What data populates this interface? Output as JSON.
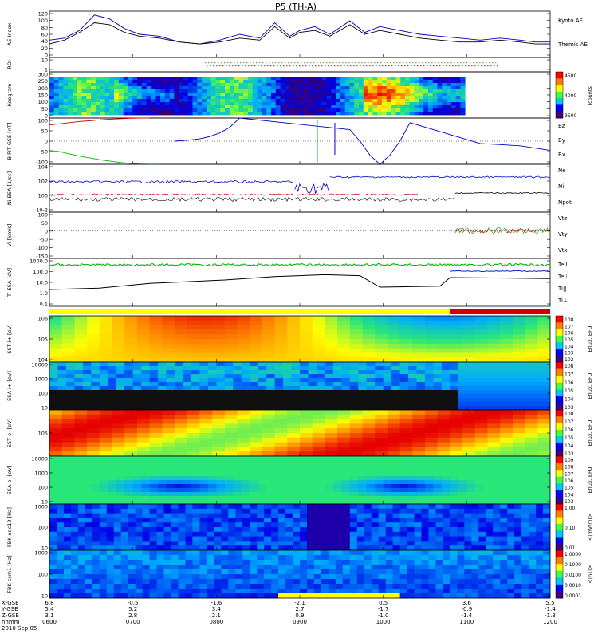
{
  "title": "P5 (TH-A)",
  "colors": {
    "blue": "#0000c8",
    "red": "#d00000",
    "green": "#00b400",
    "black": "#000000"
  },
  "chart_data": [
    {
      "type": "line",
      "panel": "ae",
      "ylabel": "AE Index",
      "ylim": [
        0,
        120
      ],
      "yticks": [
        "120",
        "100",
        "80",
        "60",
        "40",
        "20",
        "0"
      ],
      "series": [
        {
          "name": "Kyoto AE",
          "color": "#0000c8",
          "x": [
            0,
            0.03,
            0.06,
            0.09,
            0.12,
            0.15,
            0.18,
            0.22,
            0.26,
            0.3,
            0.34,
            0.38,
            0.42,
            0.45,
            0.48,
            0.5,
            0.53,
            0.56,
            0.6,
            0.63,
            0.66,
            0.7,
            0.74,
            0.78,
            0.82,
            0.86,
            0.9,
            0.94,
            0.97,
            1.0
          ],
          "y": [
            45,
            50,
            70,
            110,
            100,
            75,
            60,
            55,
            40,
            35,
            45,
            60,
            50,
            90,
            55,
            70,
            80,
            60,
            95,
            65,
            80,
            70,
            60,
            55,
            50,
            45,
            50,
            45,
            40,
            40
          ]
        },
        {
          "name": "Themis AE",
          "color": "#000000",
          "x": [
            0,
            0.03,
            0.06,
            0.09,
            0.12,
            0.15,
            0.18,
            0.22,
            0.26,
            0.3,
            0.34,
            0.38,
            0.42,
            0.45,
            0.48,
            0.5,
            0.53,
            0.56,
            0.6,
            0.63,
            0.66,
            0.7,
            0.74,
            0.78,
            0.82,
            0.86,
            0.9,
            0.94,
            0.97,
            1.0
          ],
          "y": [
            35,
            45,
            65,
            90,
            85,
            65,
            55,
            50,
            40,
            35,
            40,
            50,
            45,
            80,
            50,
            65,
            70,
            55,
            85,
            60,
            70,
            60,
            50,
            45,
            40,
            40,
            45,
            40,
            35,
            35
          ]
        }
      ]
    },
    {
      "type": "line",
      "panel": "roi",
      "ylabel": "ROI",
      "yticks": [
        "10",
        "1"
      ]
    },
    {
      "type": "heatmap",
      "panel": "keogram",
      "ylabel": "Keogram",
      "ylim": [
        0,
        300
      ],
      "yticks": [
        "300",
        "250",
        "200",
        "150",
        "100",
        "50",
        "0"
      ],
      "colorbar": {
        "label": "[counts]",
        "ticks": [
          "4500",
          "4000",
          "3500"
        ]
      }
    },
    {
      "type": "line",
      "panel": "bfit",
      "ylabel": "B FIT GSE [nT]",
      "ylim": [
        -100,
        100
      ],
      "yticks": [
        "100",
        "50",
        "0",
        "-50",
        "-100"
      ],
      "series": [
        {
          "name": "Bz",
          "color": "#d00000",
          "x": [
            0,
            0.02,
            0.04,
            0.06,
            0.08,
            0.1,
            0.12,
            0.14,
            0.16,
            0.18,
            0.2
          ],
          "y": [
            70,
            75,
            80,
            85,
            88,
            92,
            95,
            97,
            99,
            100,
            100
          ]
        },
        {
          "name": "By",
          "color": "#00b400",
          "x": [
            0,
            0.02,
            0.04,
            0.06,
            0.08,
            0.1,
            0.12,
            0.14,
            0.16,
            0.18,
            0.2,
            0.22
          ],
          "y": [
            -40,
            -45,
            -55,
            -65,
            -72,
            -80,
            -86,
            -92,
            -96,
            -99,
            -100,
            -100
          ]
        },
        {
          "name": "Bx",
          "color": "#0000c8",
          "x": [
            0.25,
            0.28,
            0.3,
            0.32,
            0.34,
            0.36,
            0.37,
            0.38,
            0.6,
            0.62,
            0.64,
            0.66,
            0.68,
            0.7,
            0.72,
            0.86,
            0.9,
            0.94,
            0.97,
            1.0
          ],
          "y": [
            0,
            5,
            10,
            20,
            35,
            60,
            80,
            100,
            50,
            0,
            -60,
            -100,
            -60,
            0,
            80,
            -10,
            -15,
            -20,
            -30,
            -40
          ]
        }
      ]
    },
    {
      "type": "line",
      "panel": "ni",
      "ylabel": "Ni ESA [1/cc]",
      "yticks": [
        "10^4",
        "10^2",
        "10^0",
        "10^-2"
      ],
      "series": [
        {
          "name": "Ne",
          "color": "#d00000"
        },
        {
          "name": "Ni",
          "color": "#000000"
        },
        {
          "name": "Npot",
          "color": "#0000c8"
        }
      ]
    },
    {
      "type": "line",
      "panel": "vi",
      "ylabel": "Vi [km/s]",
      "ylim": [
        -150,
        100
      ],
      "yticks": [
        "100",
        "50",
        "0",
        "-50",
        "-100",
        "-150"
      ],
      "series": [
        {
          "name": "Vtz",
          "color": "#d00000"
        },
        {
          "name": "Vty",
          "color": "#00b400"
        },
        {
          "name": "Vtx",
          "color": "#0000c8"
        }
      ]
    },
    {
      "type": "line",
      "panel": "ti",
      "ylabel": "Ti ESA [eV]",
      "yticks": [
        "1000.0",
        "100.0",
        "10.0",
        "1.0",
        "0.1"
      ],
      "series": [
        {
          "name": "Tell",
          "color": "#000000"
        },
        {
          "name": "Te⊥",
          "color": "#d00000"
        },
        {
          "name": "Ti||",
          "color": "#00b400"
        },
        {
          "name": "Ti⊥",
          "color": "#0000c8"
        }
      ]
    },
    {
      "type": "heatmap",
      "panel": "sst-i",
      "ylabel": "SST i+ [eV]",
      "yticks": [
        "10^6",
        "10^5",
        "10^4"
      ],
      "colorbar": {
        "label": "Eflux, EFU",
        "ticks": [
          "10^8",
          "10^7",
          "10^6",
          "10^5",
          "10^4",
          "10^3",
          "10^2"
        ]
      }
    },
    {
      "type": "heatmap",
      "panel": "esa-i",
      "ylabel": "ESA i+ [eV]",
      "yticks": [
        "10000",
        "1000",
        "100",
        "10"
      ],
      "colorbar": {
        "label": "Eflux, EFU",
        "ticks": [
          "10^8",
          "10^7",
          "10^6",
          "10^5",
          "10^4",
          "10^3"
        ]
      }
    },
    {
      "type": "heatmap",
      "panel": "sst-e",
      "ylabel": "SST e- [eV]",
      "yticks": [
        "10^5"
      ],
      "colorbar": {
        "label": "Eflux, EFU",
        "ticks": [
          "10^8",
          "10^7",
          "10^6",
          "10^5",
          "10^4",
          "10^3"
        ]
      }
    },
    {
      "type": "heatmap",
      "panel": "esa-e",
      "ylabel": "ESA e- [eV]",
      "yticks": [
        "10000",
        "1000",
        "100",
        "10"
      ],
      "colorbar": {
        "label": "Eflux, EFU",
        "ticks": [
          "10^9",
          "10^8",
          "10^7",
          "10^6",
          "10^5",
          "10^4",
          "10^3"
        ]
      }
    },
    {
      "type": "heatmap",
      "panel": "fbk-edc",
      "ylabel": "FBK edc12 [Hz]",
      "yticks": [
        "1000",
        "100",
        "10"
      ],
      "colorbar": {
        "label": "<|mV/m|>",
        "ticks": [
          "1.00",
          "0.10",
          "0.01"
        ]
      }
    },
    {
      "type": "heatmap",
      "panel": "fbk-scm",
      "ylabel": "FBK scm1 [Hz]",
      "yticks": [
        "1000",
        "100",
        "10"
      ],
      "colorbar": {
        "label": "<|nT|>",
        "ticks": [
          "1.0000",
          "0.1000",
          "0.0100",
          "0.0010",
          "0.0001"
        ]
      }
    }
  ],
  "xaxis": {
    "rows": [
      {
        "label": "X-GSE",
        "values": [
          "6.8",
          "-0.5",
          "-1.6",
          "-2.1",
          "0.5",
          "3.6",
          "5.5"
        ]
      },
      {
        "label": "Y-GSE",
        "values": [
          "5.4",
          "5.2",
          "3.4",
          "2.7",
          "-1.7",
          "-0.9",
          "-1.4"
        ]
      },
      {
        "label": "Z-GSE",
        "values": [
          "3.1",
          "2.8",
          "2.1",
          "0.9",
          "-1.0",
          "-1.4",
          "-1.3"
        ]
      },
      {
        "label": "hhmm",
        "values": [
          "0600",
          "0700",
          "0800",
          "0900",
          "1000",
          "1100",
          "1200"
        ]
      }
    ],
    "date": "2010 Sep 05"
  },
  "legend": {
    "ae": [
      "Kyoto AE",
      "Themis AE"
    ],
    "bfit": [
      "Bz",
      "By",
      "Bx"
    ],
    "ni": [
      "Ne",
      "Ni",
      "Npot"
    ],
    "vi": [
      "Vtz",
      "Vty",
      "Vtx"
    ],
    "ti": [
      "Tell",
      "Te⊥",
      "Ti||",
      "Ti⊥"
    ]
  }
}
